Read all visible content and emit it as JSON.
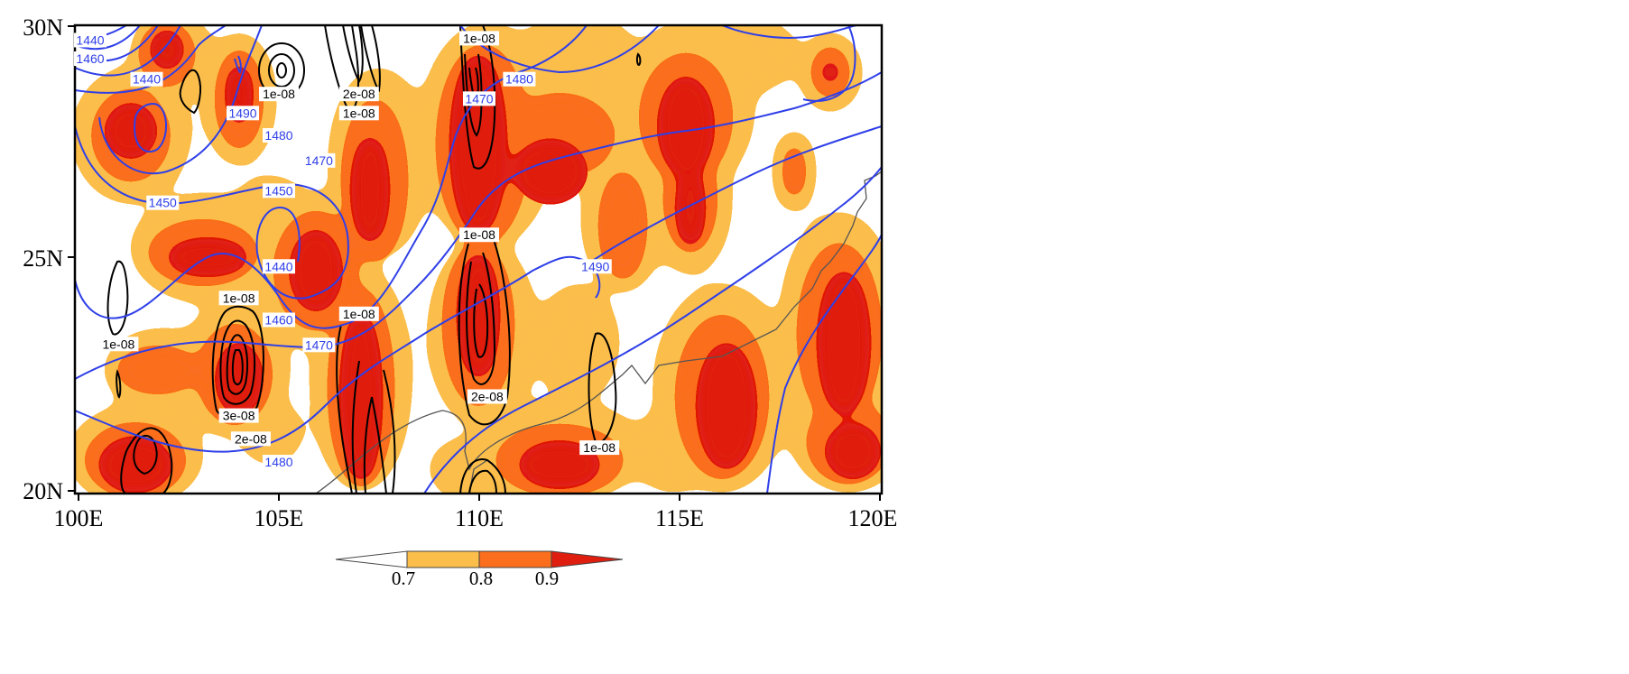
{
  "map": {
    "lon_range": [
      100,
      120
    ],
    "lat_range": [
      20,
      30
    ],
    "lon_ticks": [
      "100E",
      "105E",
      "110E",
      "115E",
      "120E"
    ],
    "lat_ticks": [
      "30N",
      "25N",
      "20N"
    ],
    "shading_colors": [
      "#ffffff",
      "#fbbe4b",
      "#fa6e1e",
      "#e01e10"
    ],
    "contour_colors": {
      "height": "#2f3fe8",
      "flux": "#000000",
      "coast": "#555555"
    }
  },
  "colorbar": {
    "labels": [
      "0.7",
      "0.8",
      "0.9"
    ]
  },
  "height_labels": [
    {
      "text": "1440",
      "lon": 101.7,
      "lat": 28.86
    },
    {
      "text": "1490",
      "lon": 104.1,
      "lat": 28.13
    },
    {
      "text": "1480",
      "lon": 105.0,
      "lat": 27.65
    },
    {
      "text": "1470",
      "lon": 106.0,
      "lat": 27.11
    },
    {
      "text": "1450",
      "lon": 102.1,
      "lat": 26.2
    },
    {
      "text": "1450",
      "lon": 105.0,
      "lat": 26.46
    },
    {
      "text": "1440",
      "lon": 105.0,
      "lat": 24.83
    },
    {
      "text": "1460",
      "lon": 105.0,
      "lat": 23.68
    },
    {
      "text": "1470",
      "lon": 106.0,
      "lat": 23.14
    },
    {
      "text": "1480",
      "lon": 105.0,
      "lat": 20.62
    },
    {
      "text": "1480",
      "lon": 111.0,
      "lat": 28.86
    },
    {
      "text": "1470",
      "lon": 110.0,
      "lat": 28.44
    },
    {
      "text": "1490",
      "lon": 112.9,
      "lat": 24.83
    },
    {
      "text": "1460",
      "lon": 99.85,
      "lat": 29.3
    },
    {
      "text": "1440",
      "lon": 99.85,
      "lat": 29.7
    }
  ],
  "flux_labels": [
    {
      "text": "1e-08",
      "lon": 110.0,
      "lat": 29.74
    },
    {
      "text": "1e-08",
      "lon": 105.0,
      "lat": 28.54
    },
    {
      "text": "2e-08",
      "lon": 107.0,
      "lat": 28.54
    },
    {
      "text": "1e-08",
      "lon": 107.0,
      "lat": 28.13
    },
    {
      "text": "1e-08",
      "lon": 110.0,
      "lat": 25.51
    },
    {
      "text": "1e-08",
      "lon": 104.0,
      "lat": 24.15
    },
    {
      "text": "1e-08",
      "lon": 107.0,
      "lat": 23.81
    },
    {
      "text": "1e-08",
      "lon": 101.0,
      "lat": 23.16
    },
    {
      "text": "2e-08",
      "lon": 110.2,
      "lat": 22.03
    },
    {
      "text": "3e-08",
      "lon": 104.0,
      "lat": 21.62
    },
    {
      "text": "2e-08",
      "lon": 104.3,
      "lat": 21.12
    },
    {
      "text": "1e-08",
      "lon": 113.0,
      "lat": 20.93
    }
  ]
}
